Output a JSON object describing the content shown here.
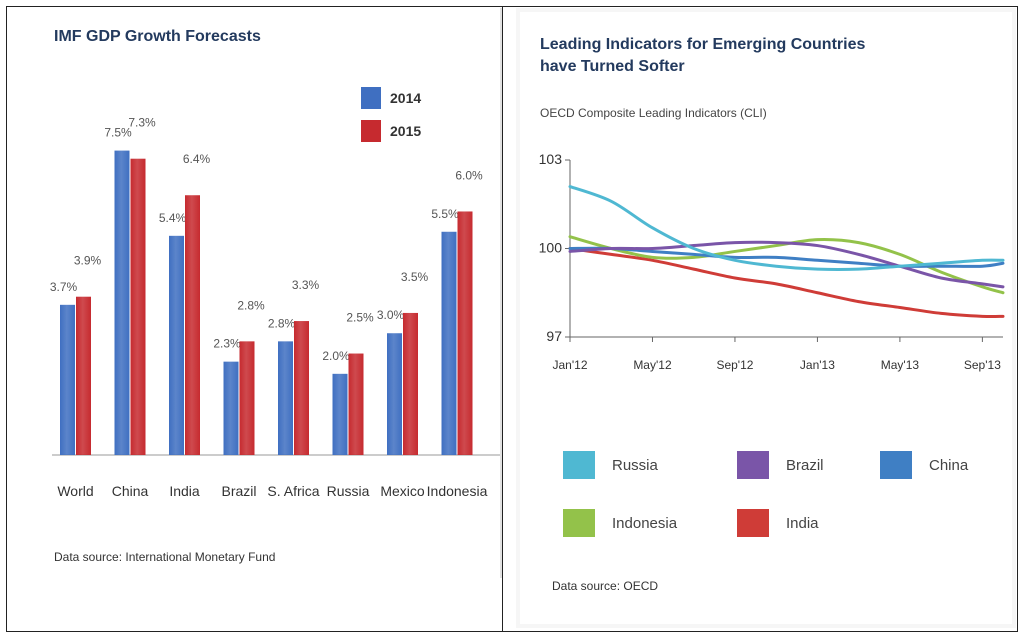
{
  "left_panel": {
    "title": "IMF GDP Growth Forecasts",
    "source": "Data source: International Monetary Fund"
  },
  "right_panel": {
    "title_line1": "Leading Indicators for Emerging Countries",
    "title_line2": "have Turned Softer",
    "subtitle": "OECD Composite Leading Indicators (CLI)",
    "source": "Data source: OECD"
  },
  "colors": {
    "bar_2014": "#3f6fc1",
    "bar_2015": "#c62a2f",
    "russia": "#4fb8d2",
    "brazil": "#7a55a8",
    "china": "#3f7fc4",
    "indonesia": "#93c24a",
    "india": "#cf3c37"
  },
  "chart_data": [
    {
      "type": "bar",
      "title": "IMF GDP Growth Forecasts",
      "categories": [
        "World",
        "China",
        "India",
        "Brazil",
        "S. Africa",
        "Russia",
        "Mexico",
        "Indonesia"
      ],
      "series": [
        {
          "name": "2014",
          "values": [
            3.7,
            7.5,
            5.4,
            2.3,
            2.8,
            2.0,
            3.0,
            5.5
          ],
          "labels": [
            "3.7%",
            "7.5%",
            "5.4%",
            "2.3%",
            "2.8%",
            "2.0%",
            "3.0%",
            "5.5%"
          ]
        },
        {
          "name": "2015",
          "values": [
            3.9,
            7.3,
            6.4,
            2.8,
            3.3,
            2.5,
            3.5,
            6.0
          ],
          "labels": [
            "3.9%",
            "7.3%",
            "6.4%",
            "2.8%",
            "3.3%",
            "2.5%",
            "3.5%",
            "6.0%"
          ]
        }
      ],
      "ylim": [
        0,
        8.5
      ],
      "legend": "top-right"
    },
    {
      "type": "line",
      "title": "Leading Indicators for Emerging Countries have Turned Softer",
      "subtitle": "OECD Composite Leading Indicators (CLI)",
      "x_ticks": [
        "Jan'12",
        "May'12",
        "Sep'12",
        "Jan'13",
        "May'13",
        "Sep'13"
      ],
      "x_range": [
        0,
        21
      ],
      "y_ticks": [
        "103",
        "100",
        "97"
      ],
      "ylim": [
        97,
        103
      ],
      "series": [
        {
          "name": "Russia",
          "x": [
            0,
            2,
            4,
            6,
            8,
            10,
            12,
            14,
            16,
            18,
            20,
            21
          ],
          "y": [
            102.1,
            101.6,
            100.7,
            100.0,
            99.6,
            99.4,
            99.3,
            99.3,
            99.4,
            99.5,
            99.6,
            99.6
          ]
        },
        {
          "name": "Brazil",
          "x": [
            0,
            2,
            4,
            6,
            8,
            10,
            12,
            14,
            16,
            18,
            20,
            21
          ],
          "y": [
            99.9,
            100.0,
            100.0,
            100.1,
            100.2,
            100.2,
            100.1,
            99.8,
            99.4,
            99.0,
            98.8,
            98.7
          ]
        },
        {
          "name": "China",
          "x": [
            0,
            2,
            4,
            6,
            8,
            10,
            12,
            14,
            16,
            18,
            20,
            21
          ],
          "y": [
            100.0,
            100.0,
            99.9,
            99.8,
            99.7,
            99.7,
            99.6,
            99.5,
            99.4,
            99.4,
            99.4,
            99.5
          ]
        },
        {
          "name": "Indonesia",
          "x": [
            0,
            2,
            4,
            6,
            8,
            10,
            12,
            14,
            16,
            18,
            20,
            21
          ],
          "y": [
            100.4,
            100.0,
            99.7,
            99.7,
            99.9,
            100.1,
            100.3,
            100.2,
            99.8,
            99.2,
            98.7,
            98.5
          ]
        },
        {
          "name": "India",
          "x": [
            0,
            2,
            4,
            6,
            8,
            10,
            12,
            14,
            16,
            18,
            20,
            21
          ],
          "y": [
            100.0,
            99.8,
            99.6,
            99.3,
            99.0,
            98.8,
            98.5,
            98.2,
            98.0,
            97.8,
            97.7,
            97.7
          ]
        }
      ],
      "legend": "bottom"
    }
  ]
}
